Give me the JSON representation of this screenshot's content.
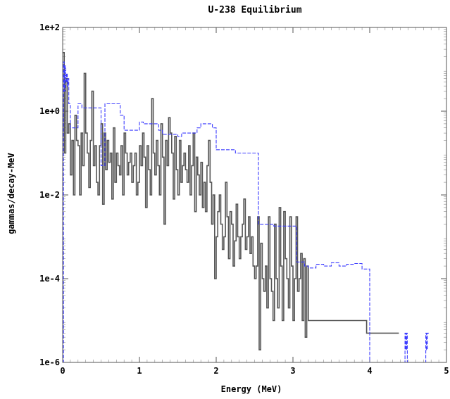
{
  "chart_data": {
    "type": "line",
    "title": "U-238 Equilibrium",
    "xlabel": "Energy (MeV)",
    "ylabel": "gammas/decay-MeV",
    "xlim": [
      0,
      5
    ],
    "ylim": [
      1e-06,
      100
    ],
    "yscale": "log",
    "xticks": [
      0,
      1,
      2,
      3,
      4,
      5
    ],
    "xtick_labels": [
      "0",
      "1",
      "2",
      "3",
      "4",
      "5"
    ],
    "yticks": [
      1e-06,
      0.0001,
      0.01,
      1,
      100
    ],
    "ytick_labels": [
      "1e-6",
      "1e-4",
      "1e-2",
      "1e+0",
      "1e+2"
    ],
    "series": [
      {
        "color": "#555555",
        "style": "solid step",
        "x": [
          0.0,
          0.02,
          0.04,
          0.06,
          0.08,
          0.1,
          0.12,
          0.14,
          0.16,
          0.18,
          0.2,
          0.22,
          0.24,
          0.26,
          0.28,
          0.3,
          0.32,
          0.34,
          0.36,
          0.38,
          0.4,
          0.42,
          0.44,
          0.46,
          0.48,
          0.5,
          0.52,
          0.54,
          0.56,
          0.58,
          0.6,
          0.62,
          0.64,
          0.66,
          0.68,
          0.7,
          0.72,
          0.74,
          0.76,
          0.78,
          0.8,
          0.82,
          0.84,
          0.86,
          0.88,
          0.9,
          0.92,
          0.94,
          0.96,
          0.98,
          1.0,
          1.02,
          1.04,
          1.06,
          1.08,
          1.1,
          1.12,
          1.14,
          1.16,
          1.18,
          1.2,
          1.22,
          1.24,
          1.26,
          1.28,
          1.3,
          1.32,
          1.34,
          1.36,
          1.38,
          1.4,
          1.42,
          1.44,
          1.46,
          1.48,
          1.5,
          1.52,
          1.54,
          1.56,
          1.58,
          1.6,
          1.62,
          1.64,
          1.66,
          1.68,
          1.7,
          1.72,
          1.74,
          1.76,
          1.78,
          1.8,
          1.82,
          1.84,
          1.86,
          1.88,
          1.9,
          1.92,
          1.94,
          1.96,
          1.98,
          2.0,
          2.02,
          2.04,
          2.06,
          2.08,
          2.1,
          2.12,
          2.14,
          2.16,
          2.18,
          2.2,
          2.22,
          2.24,
          2.26,
          2.28,
          2.3,
          2.32,
          2.34,
          2.36,
          2.38,
          2.4,
          2.42,
          2.44,
          2.46,
          2.48,
          2.5,
          2.52,
          2.54,
          2.56,
          2.58,
          2.6,
          2.62,
          2.64,
          2.66,
          2.68,
          2.7,
          2.72,
          2.74,
          2.76,
          2.78,
          2.8,
          2.82,
          2.84,
          2.86,
          2.88,
          2.9,
          2.92,
          2.94,
          2.96,
          2.98,
          3.0,
          3.02,
          3.04,
          3.06,
          3.08,
          3.1,
          3.12,
          3.14,
          3.16,
          3.18,
          3.2,
          3.96,
          4.36
        ],
        "y": [
          25,
          0.1,
          6,
          0.3,
          0.5,
          0.03,
          0.2,
          0.01,
          0.8,
          0.2,
          0.15,
          0.01,
          0.3,
          0.05,
          8,
          0.3,
          0.1,
          0.015,
          0.2,
          3,
          0.05,
          0.15,
          0.02,
          0.01,
          0.15,
          0.5,
          0.006,
          0.3,
          0.04,
          0.2,
          0.06,
          0.1,
          0.008,
          0.4,
          0.02,
          0.1,
          0.05,
          0.03,
          0.15,
          0.01,
          0.3,
          0.1,
          0.03,
          0.06,
          0.1,
          0.02,
          0.05,
          0.1,
          0.01,
          0.02,
          0.15,
          0.05,
          0.3,
          0.08,
          0.005,
          0.15,
          0.04,
          0.01,
          2,
          0.1,
          0.03,
          0.2,
          0.05,
          0.01,
          0.5,
          0.08,
          0.002,
          0.2,
          0.05,
          0.7,
          0.3,
          0.1,
          0.008,
          0.25,
          0.04,
          0.01,
          0.2,
          0.02,
          0.05,
          0.1,
          0.04,
          0.02,
          0.15,
          0.01,
          0.05,
          0.3,
          0.004,
          0.08,
          0.03,
          0.01,
          0.06,
          0.005,
          0.02,
          0.004,
          0.05,
          0.2,
          0.02,
          0.002,
          0.01,
          0.0001,
          0.001,
          0.004,
          0.01,
          0.002,
          0.0005,
          0.001,
          0.02,
          0.003,
          0.0003,
          0.004,
          0.002,
          0.0002,
          0.0008,
          0.006,
          0.001,
          0.0003,
          0.001,
          0.002,
          0.008,
          0.0005,
          0.001,
          0.003,
          0.0004,
          0.001,
          0.0002,
          0.0001,
          0.0002,
          0.003,
          2e-06,
          0.0007,
          0.0001,
          5e-05,
          0.0002,
          2e-05,
          0.003,
          0.0001,
          5e-05,
          1e-05,
          0.002,
          0.0001,
          2e-05,
          0.005,
          0.0002,
          1e-05,
          0.004,
          0.0003,
          0.0001,
          2e-05,
          0.003,
          0.0002,
          1e-05,
          0.0001,
          0.003,
          5e-05,
          0.0001,
          0.0004,
          1e-05,
          0.0003,
          4e-06,
          0.0002,
          1e-05,
          5e-06,
          5e-06
        ]
      },
      {
        "color": "#3b3bff",
        "style": "dashed step",
        "x": [
          0.0,
          0.01,
          0.02,
          0.03,
          0.04,
          0.05,
          0.06,
          0.07,
          0.08,
          0.1,
          0.2,
          0.25,
          0.5,
          0.55,
          0.75,
          0.8,
          1.0,
          1.05,
          1.25,
          1.3,
          1.5,
          1.55,
          1.75,
          1.8,
          1.95,
          2.0,
          2.25,
          2.5,
          2.55,
          2.75,
          3.0,
          3.05,
          3.15,
          3.2,
          3.3,
          3.4,
          3.5,
          3.6,
          3.7,
          3.8,
          3.9,
          4.0,
          4.46,
          4.47,
          4.48,
          4.49,
          4.73,
          4.74,
          4.75
        ],
        "y": [
          1e-06,
          15,
          3,
          12,
          5,
          8,
          4,
          6,
          1.5,
          0.4,
          1.5,
          1.2,
          0.05,
          1.5,
          0.8,
          0.35,
          0.55,
          0.5,
          0.35,
          0.28,
          0.25,
          0.3,
          0.4,
          0.5,
          0.4,
          0.12,
          0.1,
          0.1,
          0.002,
          0.0018,
          0.0018,
          0.00025,
          0.0002,
          0.00018,
          0.00022,
          0.0002,
          0.00024,
          0.0002,
          0.00022,
          0.00023,
          0.00017,
          1e-06,
          5e-06,
          2e-06,
          5e-06,
          1e-06,
          5e-06,
          2e-06,
          5e-06
        ]
      }
    ]
  }
}
